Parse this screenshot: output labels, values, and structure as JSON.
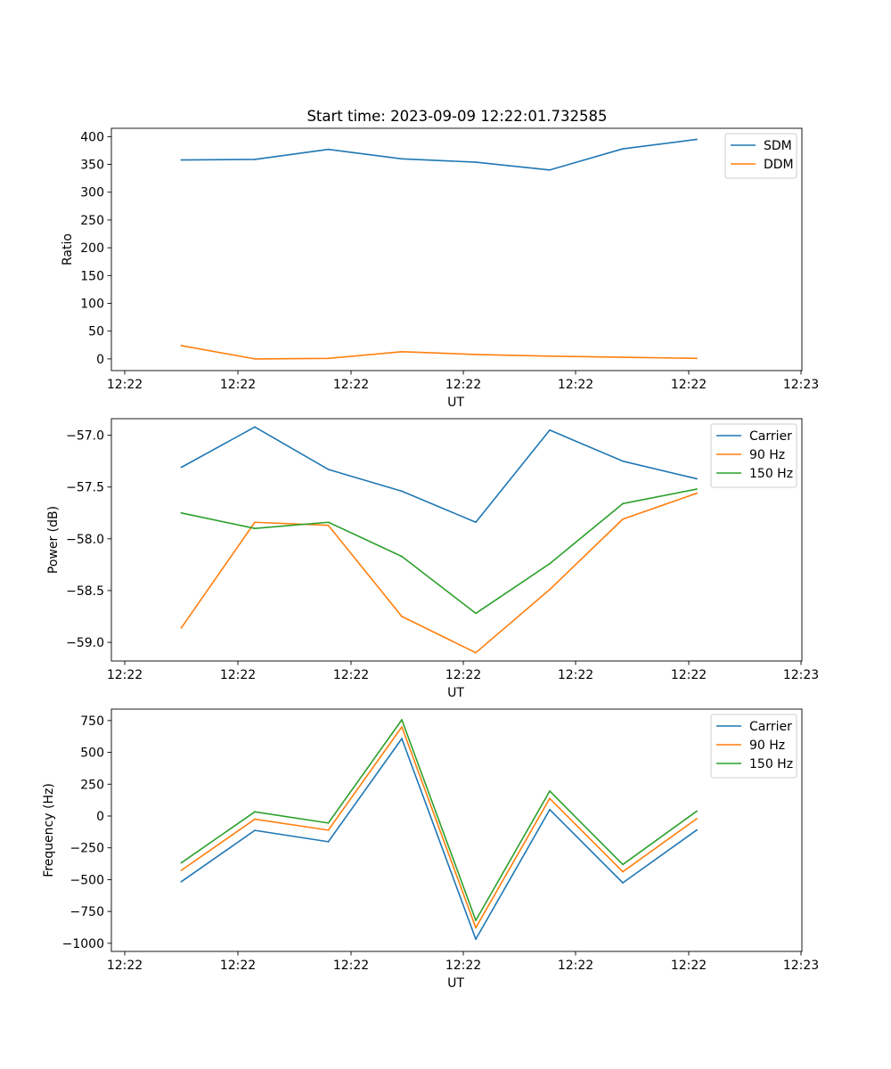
{
  "title": "Start time: 2023-09-09 12:22:01.732585",
  "colors": {
    "blue": "#1f77b4",
    "orange": "#ff7f0e",
    "green": "#2ca02c"
  },
  "chart_data": [
    {
      "type": "line",
      "xlabel": "UT",
      "ylabel": "Ratio",
      "x_tick_labels": [
        "12:22",
        "12:22",
        "12:22",
        "12:22",
        "12:22",
        "12:22",
        "12:22",
        "12:23"
      ],
      "y_ticks": [
        0,
        50,
        100,
        150,
        200,
        250,
        300,
        350,
        400
      ],
      "ylim": [
        -21,
        415
      ],
      "legend_position": "upper right",
      "series": [
        {
          "name": "SDM",
          "color": "#1f77b4",
          "values": [
            358,
            359,
            377,
            360,
            354,
            340,
            378,
            395
          ]
        },
        {
          "name": "DDM",
          "color": "#ff7f0e",
          "values": [
            24,
            0,
            1,
            13,
            8,
            5,
            3,
            1
          ]
        }
      ]
    },
    {
      "type": "line",
      "xlabel": "UT",
      "ylabel": "Power (dB)",
      "x_tick_labels": [
        "12:22",
        "12:22",
        "12:22",
        "12:22",
        "12:22",
        "12:22",
        "12:22",
        "12:23"
      ],
      "y_ticks": [
        -59.0,
        -58.5,
        -58.0,
        -57.5,
        -57.0
      ],
      "y_tick_labels": [
        "−59.0",
        "−58.5",
        "−58.0",
        "−57.5",
        "−57.0"
      ],
      "ylim": [
        -59.18,
        -56.84
      ],
      "legend_position": "upper right",
      "series": [
        {
          "name": "Carrier",
          "color": "#1f77b4",
          "values": [
            -57.31,
            -56.92,
            -57.33,
            -57.54,
            -57.84,
            -56.95,
            -57.25,
            -57.42
          ]
        },
        {
          "name": "90 Hz",
          "color": "#ff7f0e",
          "values": [
            -58.86,
            -57.84,
            -57.87,
            -58.75,
            -59.1,
            -58.49,
            -57.81,
            -57.56
          ]
        },
        {
          "name": "150 Hz",
          "color": "#2ca02c",
          "values": [
            -57.75,
            -57.9,
            -57.84,
            -58.17,
            -58.72,
            -58.24,
            -57.66,
            -57.52
          ]
        }
      ]
    },
    {
      "type": "line",
      "xlabel": "UT",
      "ylabel": "Frequency (Hz)",
      "x_tick_labels": [
        "12:22",
        "12:22",
        "12:22",
        "12:22",
        "12:22",
        "12:22",
        "12:22",
        "12:23"
      ],
      "y_ticks": [
        -1000,
        -750,
        -500,
        -250,
        0,
        250,
        500,
        750
      ],
      "y_tick_labels": [
        "−1000",
        "−750",
        "−500",
        "−250",
        "0",
        "250",
        "500",
        "750"
      ],
      "ylim": [
        -1064,
        840
      ],
      "legend_position": "upper right",
      "series": [
        {
          "name": "Carrier",
          "color": "#1f77b4",
          "values": [
            -516,
            -113,
            -202,
            608,
            -968,
            50,
            -525,
            -110
          ]
        },
        {
          "name": "90 Hz",
          "color": "#ff7f0e",
          "values": [
            -427,
            -25,
            -111,
            700,
            -878,
            138,
            -438,
            -21
          ]
        },
        {
          "name": "150 Hz",
          "color": "#2ca02c",
          "values": [
            -368,
            33,
            -55,
            756,
            -820,
            196,
            -381,
            38
          ]
        }
      ]
    }
  ]
}
